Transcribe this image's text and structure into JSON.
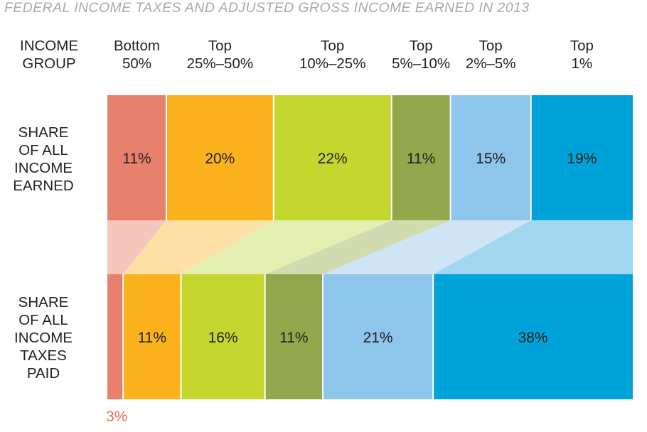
{
  "title": "FEDERAL INCOME TAXES AND ADJUSTED GROSS INCOME EARNED IN 2013",
  "header_label": [
    "INCOME",
    "GROUP"
  ],
  "row_labels": {
    "income": [
      "SHARE",
      "OF ALL",
      "INCOME",
      "EARNED"
    ],
    "taxes": [
      "SHARE",
      "OF ALL",
      "INCOME",
      "TAXES",
      "PAID"
    ]
  },
  "groups": [
    {
      "line1": "Bottom",
      "line2": "50%"
    },
    {
      "line1": "Top",
      "line2": "25%–50%"
    },
    {
      "line1": "Top",
      "line2": "10%–25%"
    },
    {
      "line1": "Top",
      "line2": "5%–10%"
    },
    {
      "line1": "Top",
      "line2": "2%–5%"
    },
    {
      "line1": "Top",
      "line2": "1%"
    }
  ],
  "colors": [
    "#e8806e",
    "#fbb21c",
    "#c3d72e",
    "#92a84c",
    "#8ec5ea",
    "#00a3d9"
  ],
  "band_colors": [
    "#f5c6bc",
    "#fde0a6",
    "#e5efb1",
    "#d0dbb0",
    "#cfe5f6",
    "#a0d7ef"
  ],
  "chart_data": {
    "type": "bar",
    "categories": [
      "Bottom 50%",
      "Top 25%–50%",
      "Top 10%–25%",
      "Top 5%–10%",
      "Top 2%–5%",
      "Top 1%"
    ],
    "series": [
      {
        "name": "SHARE OF ALL INCOME EARNED",
        "values": [
          11,
          20,
          22,
          11,
          15,
          19
        ],
        "labels": [
          "11%",
          "20%",
          "22%",
          "11%",
          "15%",
          "19%"
        ]
      },
      {
        "name": "SHARE OF ALL INCOME TAXES PAID",
        "values": [
          3,
          11,
          16,
          11,
          21,
          38
        ],
        "labels": [
          "3%",
          "11%",
          "16%",
          "11%",
          "21%",
          "38%"
        ]
      }
    ],
    "stacked": "100% horizontal",
    "ylim": [
      0,
      100
    ]
  }
}
